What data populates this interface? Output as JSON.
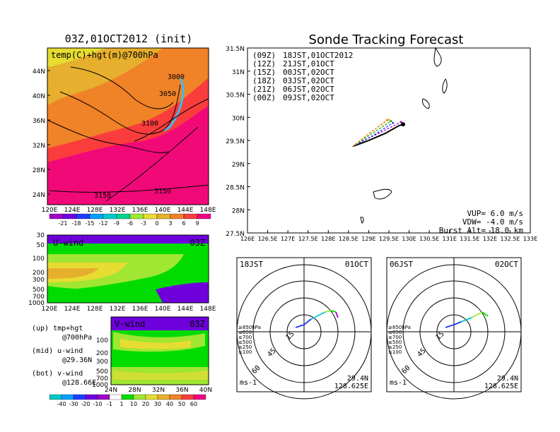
{
  "left": {
    "title": "03Z,01OCT2012 (init)",
    "map_label": "temp(C)+hgt(m)@700hPa",
    "lat_ticks": [
      "44N",
      "40N",
      "36N",
      "32N",
      "28N",
      "24N"
    ],
    "lon_ticks": [
      "120E",
      "124E",
      "128E",
      "132E",
      "136E",
      "140E",
      "144E",
      "148E"
    ],
    "contours": [
      "3000",
      "3050",
      "3100",
      "3150",
      "3150"
    ],
    "temp_colorbar": {
      "labels": [
        "-21",
        "-18",
        "-15",
        "-12",
        "-9",
        "-6",
        "-3",
        "0",
        "3",
        "6",
        "9"
      ],
      "colors": [
        "#a000c8",
        "#6e00dc",
        "#1e3cff",
        "#00a0ff",
        "#00c8c8",
        "#00d28c",
        "#a0e632",
        "#e6dc32",
        "#e6af2d",
        "#f08228",
        "#fa3c3c",
        "#f00082"
      ]
    },
    "u_panel": {
      "label": "U-wind",
      "time": "03Z",
      "y_ticks": [
        "30",
        "50",
        "100",
        "200",
        "300",
        "500",
        "700",
        "1000"
      ],
      "x_ticks": [
        "120E",
        "124E",
        "128E",
        "132E",
        "136E",
        "140E",
        "144E",
        "148E"
      ]
    },
    "v_panel": {
      "label": "V-wind",
      "time": "03Z",
      "y_ticks": [
        "100",
        "200",
        "300",
        "500",
        "700",
        "1000"
      ],
      "x_ticks": [
        "24N",
        "28N",
        "32N",
        "36N",
        "40N"
      ]
    },
    "legend_notes": [
      {
        "head": "(up) tmp+hgt",
        "sub": "@700hPa"
      },
      {
        "head": "(mid) u-wind",
        "sub": "@29.36N"
      },
      {
        "head": "(bot) v-wind",
        "sub": "@128.66E"
      }
    ],
    "wind_colorbar": {
      "labels": [
        "-40",
        "-30",
        "-20",
        "-10",
        "-1",
        "1",
        "10",
        "20",
        "30",
        "40",
        "50",
        "60"
      ],
      "colors": [
        "#00c8c8",
        "#00a0ff",
        "#1e3cff",
        "#6e00dc",
        "#a000c8",
        "#ffffff",
        "#00dc00",
        "#a0e632",
        "#e6dc32",
        "#e6af2d",
        "#f08228",
        "#fa3c3c",
        "#f00082"
      ]
    }
  },
  "right": {
    "title": "Sonde Tracking Forecast",
    "lat_ticks": [
      "31.5N",
      "31N",
      "30.5N",
      "30N",
      "29.5N",
      "29N",
      "28.5N",
      "28N",
      "27.5N"
    ],
    "lon_ticks": [
      "126E",
      "126.5E",
      "127E",
      "127.5E",
      "128E",
      "128.5E",
      "129E",
      "129.5E",
      "130E",
      "130.5E",
      "131E",
      "131.5E",
      "132E",
      "132.5E",
      "133E"
    ],
    "legend": [
      {
        "z": "(09Z)",
        "jst": "18JST,01OCT2012",
        "color": "#000000"
      },
      {
        "z": "(12Z)",
        "jst": "21JST,01OCT",
        "color": "#a000c8"
      },
      {
        "z": "(15Z)",
        "jst": "00JST,02OCT",
        "color": "#1e3cff"
      },
      {
        "z": "(18Z)",
        "jst": "03JST,02OCT",
        "color": "#00b400"
      },
      {
        "z": "(21Z)",
        "jst": "06JST,02OCT",
        "color": "#f0b400"
      },
      {
        "z": "(00Z)",
        "jst": "09JST,02OCT",
        "color": "#f08228"
      }
    ],
    "params": [
      "VUP= 6.0 m/s",
      "VDW= -4.0 m/s",
      "Burst Alt= 18.0 km"
    ]
  },
  "hodo1": {
    "time": "18JST",
    "date": "01OCT",
    "lat": "29.4N",
    "lon": "128.625E",
    "unit": "ms-1",
    "rings": [
      "15",
      "45",
      "60"
    ],
    "levels": [
      "≥850hPa",
      "≤850",
      "≤700",
      "≤500",
      "≤250",
      "≤100"
    ]
  },
  "hodo2": {
    "time": "06JST",
    "date": "02OCT",
    "lat": "29.4N",
    "lon": "128.625E",
    "unit": "ms-1",
    "rings": [
      "15",
      "45",
      "60"
    ],
    "levels": [
      "≥850hPa",
      "≤850",
      "≤700",
      "≤500",
      "≤250",
      "≤100"
    ]
  },
  "chart_data": {
    "type": "line",
    "title": "Sonde Tracking Forecast",
    "xlim": [
      126,
      133
    ],
    "ylim": [
      27.5,
      31.5
    ],
    "series": [
      {
        "name": "(09Z) 18JST,01OCT2012",
        "x": [
          128.6,
          129.0,
          129.4,
          129.75,
          129.85
        ],
        "y": [
          29.37,
          29.5,
          29.65,
          29.82,
          29.85
        ]
      },
      {
        "name": "(12Z) 21JST,01OCT",
        "x": [
          128.6,
          129.0,
          129.4,
          129.8
        ],
        "y": [
          29.37,
          29.55,
          29.72,
          29.9
        ]
      },
      {
        "name": "(15Z) 00JST,02OCT",
        "x": [
          128.6,
          129.1,
          129.6
        ],
        "y": [
          29.37,
          29.6,
          29.88
        ]
      },
      {
        "name": "(18Z) 03JST,02OCT",
        "x": [
          128.6,
          129.05,
          129.55
        ],
        "y": [
          29.37,
          29.63,
          29.92
        ]
      },
      {
        "name": "(21Z) 06JST,02OCT",
        "x": [
          128.6,
          129.0,
          129.5
        ],
        "y": [
          29.37,
          29.65,
          29.95
        ]
      },
      {
        "name": "(00Z) 09JST,02OCT",
        "x": [
          128.6,
          129.0,
          129.45
        ],
        "y": [
          29.37,
          29.64,
          29.94
        ]
      }
    ]
  }
}
